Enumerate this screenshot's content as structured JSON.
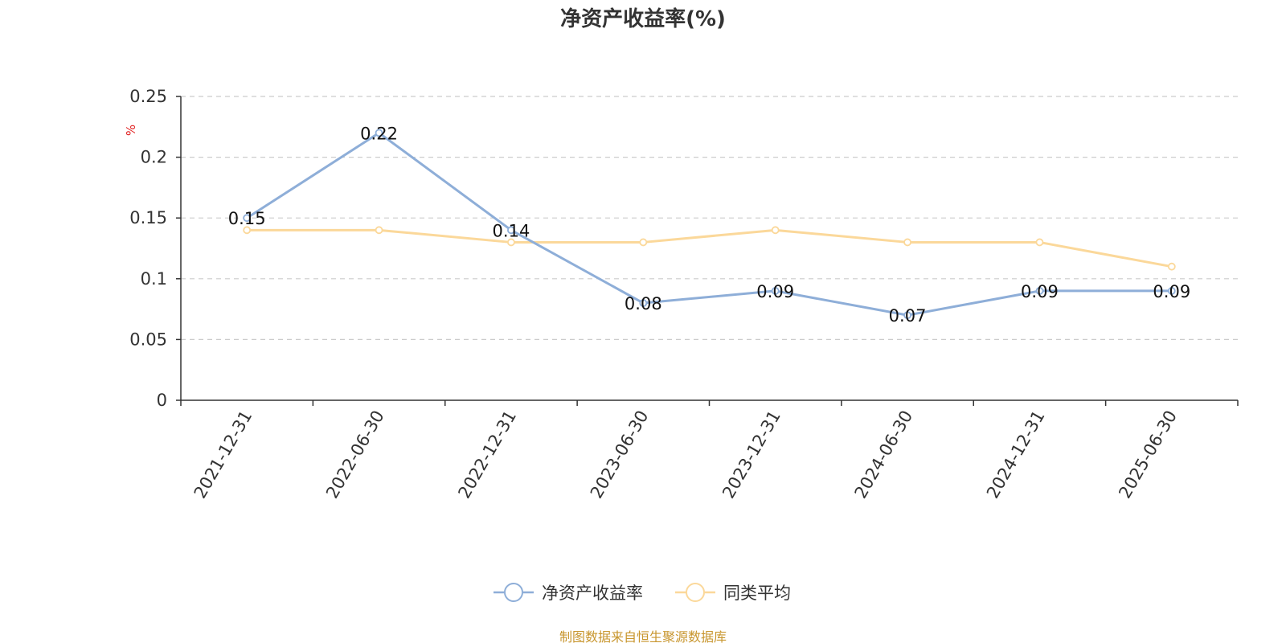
{
  "chart_data": {
    "type": "line",
    "title": "净资产收益率(%)",
    "ylabel": "%",
    "categories": [
      "2021-12-31",
      "2022-06-30",
      "2022-12-31",
      "2023-06-30",
      "2023-12-31",
      "2024-06-30",
      "2024-12-31",
      "2025-06-30"
    ],
    "yticks": [
      "0",
      "0.05",
      "0.1",
      "0.15",
      "0.2",
      "0.25"
    ],
    "ylim": [
      0,
      0.25
    ],
    "grid": true,
    "legend_position": "bottom",
    "series": [
      {
        "name": "净资产收益率",
        "color": "#8eaed8",
        "values": [
          0.15,
          0.22,
          0.14,
          0.08,
          0.09,
          0.07,
          0.09,
          0.09
        ],
        "labels": [
          "0.15",
          "0.22",
          "0.14",
          "0.08",
          "0.09",
          "0.07",
          "0.09",
          "0.09"
        ]
      },
      {
        "name": "同类平均",
        "color": "#fbd89a",
        "values": [
          0.14,
          0.14,
          0.13,
          0.13,
          0.14,
          0.13,
          0.13,
          0.11
        ]
      }
    ]
  },
  "source_note": "制图数据来自恒生聚源数据库",
  "colors": {
    "unit": "#e02020",
    "source": "#c8962e",
    "axis": "#333333",
    "grid": "#cccccc"
  }
}
